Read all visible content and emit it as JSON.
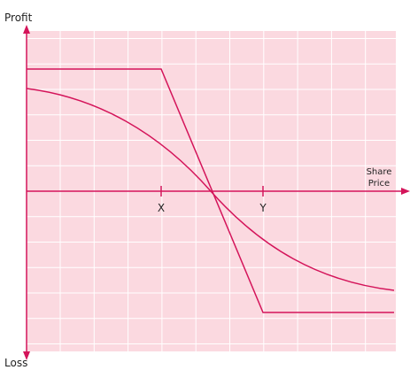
{
  "axes": {
    "y_top": "Profit",
    "y_bottom": "Loss",
    "x_label": [
      "Share",
      "Price"
    ]
  },
  "markers": [
    "X",
    "Y"
  ]
}
